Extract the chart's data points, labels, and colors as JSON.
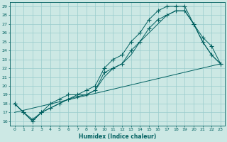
{
  "xlabel": "Humidex (Indice chaleur)",
  "bg_color": "#cce8e4",
  "line_color": "#006060",
  "grid_color": "#99cccc",
  "xlim": [
    -0.5,
    23.5
  ],
  "ylim": [
    15.5,
    29.5
  ],
  "xticks": [
    0,
    1,
    2,
    3,
    4,
    5,
    6,
    7,
    8,
    9,
    10,
    11,
    12,
    13,
    14,
    15,
    16,
    17,
    18,
    19,
    20,
    21,
    22,
    23
  ],
  "yticks": [
    16,
    17,
    18,
    19,
    20,
    21,
    22,
    23,
    24,
    25,
    26,
    27,
    28,
    29
  ],
  "lines": [
    {
      "x": [
        0,
        1,
        2,
        3,
        4,
        5,
        6,
        7,
        8,
        9,
        10,
        11,
        12,
        13,
        14,
        15,
        16,
        17,
        18,
        19,
        20,
        21,
        22,
        23
      ],
      "y": [
        18,
        17,
        16,
        17,
        18,
        18.5,
        19,
        19,
        19.5,
        20,
        22,
        23,
        23.5,
        25,
        26,
        27.5,
        28.5,
        29,
        29,
        29,
        27,
        25,
        23.5,
        22.5
      ],
      "marker": "+",
      "markersize": 4
    },
    {
      "x": [
        0,
        1,
        2,
        3,
        4,
        5,
        6,
        7,
        8,
        9,
        10,
        11,
        12,
        13,
        14,
        15,
        16,
        17,
        18,
        19,
        20,
        21,
        22,
        23
      ],
      "y": [
        18,
        17,
        16.2,
        17,
        17.5,
        18,
        18.5,
        18.8,
        19,
        19.5,
        21.5,
        22,
        22.5,
        24,
        25,
        26.5,
        27.5,
        28,
        28.5,
        28.5,
        27,
        25.5,
        24.5,
        22.5
      ],
      "marker": "+",
      "markersize": 4
    },
    {
      "x": [
        0,
        2,
        3,
        4,
        5,
        6,
        7,
        8,
        9,
        10,
        11,
        12,
        13,
        14,
        15,
        16,
        17,
        18,
        19,
        20,
        21,
        22,
        23
      ],
      "y": [
        18,
        16,
        17,
        17.5,
        18,
        18.5,
        19,
        19,
        19.5,
        21,
        22,
        22.5,
        23.5,
        25,
        26,
        27,
        28,
        28.5,
        28.5,
        27,
        25,
        23.5,
        22.5
      ],
      "marker": null,
      "markersize": 0
    },
    {
      "x": [
        0,
        23
      ],
      "y": [
        17,
        22.5
      ],
      "marker": null,
      "markersize": 0
    }
  ]
}
